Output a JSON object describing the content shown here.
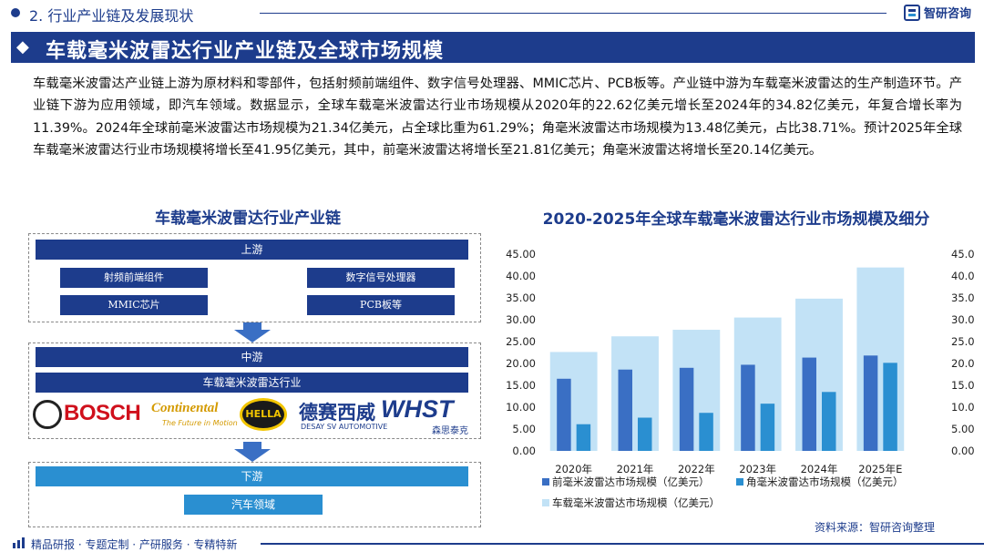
{
  "header": {
    "section_title": "2. 行业产业链及发展现状",
    "brand": "智研咨询",
    "main_title": "车载毫米波雷达行业产业链及全球市场规模"
  },
  "description": "车载毫米波雷达产业链上游为原材料和零部件，包括射频前端组件、数字信号处理器、MMIC芯片、PCB板等。产业链中游为车载毫米波雷达的生产制造环节。产业链下游为应用领域，即汽车领域。数据显示，全球车载毫米波雷达行业市场规模从2020年的22.62亿美元增长至2024年的34.82亿美元，年复合增长率为11.39%。2024年全球前毫米波雷达市场规模为21.34亿美元，占全球比重为61.29%；角毫米波雷达市场规模为13.48亿美元，占比38.71%。预计2025年全球车载毫米波雷达行业市场规模将增长至41.95亿美元，其中，前毫米波雷达将增长至21.81亿美元；角毫米波雷达将增长至20.14亿美元。",
  "chain": {
    "title": "车载毫米波雷达行业产业链",
    "upstream": {
      "label": "上游",
      "items": [
        "射频前端组件",
        "数字信号处理器",
        "MMIC芯片",
        "PCB板等"
      ]
    },
    "midstream": {
      "label": "中游",
      "item": "车载毫米波雷达行业",
      "logos": {
        "bosch": "BOSCH",
        "continental": "Continental",
        "continental_tagline": "The Future in Motion",
        "hella": "HELLA",
        "desay": "德赛西威",
        "desay_sub": "DESAY SV AUTOMOTIVE",
        "whst": "WHST",
        "whst_sub": "森思泰克"
      }
    },
    "downstream": {
      "label": "下游",
      "item": "汽车领域"
    }
  },
  "chart_title": "2020-2025年全球车载毫米波雷达行业市场规模及细分",
  "chart_data": {
    "type": "bar",
    "categories": [
      "2020年",
      "2021年",
      "2022年",
      "2023年",
      "2024年",
      "2025年E"
    ],
    "series": [
      {
        "name": "前毫米波雷达市场规模（亿美元）",
        "values": [
          16.5,
          18.6,
          19.0,
          19.7,
          21.34,
          21.81
        ],
        "color": "#3a6fc4",
        "axis": "left"
      },
      {
        "name": "角毫米波雷达市场规模（亿美元）",
        "values": [
          6.1,
          7.6,
          8.7,
          10.8,
          13.48,
          20.14
        ],
        "color": "#2a8fd1",
        "axis": "left"
      },
      {
        "name": "车载毫米波雷达市场规模（亿美元）",
        "values": [
          22.62,
          26.2,
          27.7,
          30.5,
          34.82,
          41.95
        ],
        "color": "#c2e2f6",
        "axis": "right"
      }
    ],
    "ylim": [
      0,
      45
    ],
    "y_ticks": [
      "0.00",
      "5.00",
      "10.00",
      "15.00",
      "20.00",
      "25.00",
      "30.00",
      "35.00",
      "40.00",
      "45.00"
    ],
    "y2_ticks": [
      "0.00",
      "5.00",
      "10.00",
      "15.00",
      "20.00",
      "25.00",
      "30.00",
      "35.00",
      "40.00",
      "45.00"
    ],
    "grid": false,
    "legend_position": "bottom"
  },
  "source": "资料来源：智研咨询整理",
  "footer": "精品研报 · 专题定制 · 产研服务 · 专精特新"
}
